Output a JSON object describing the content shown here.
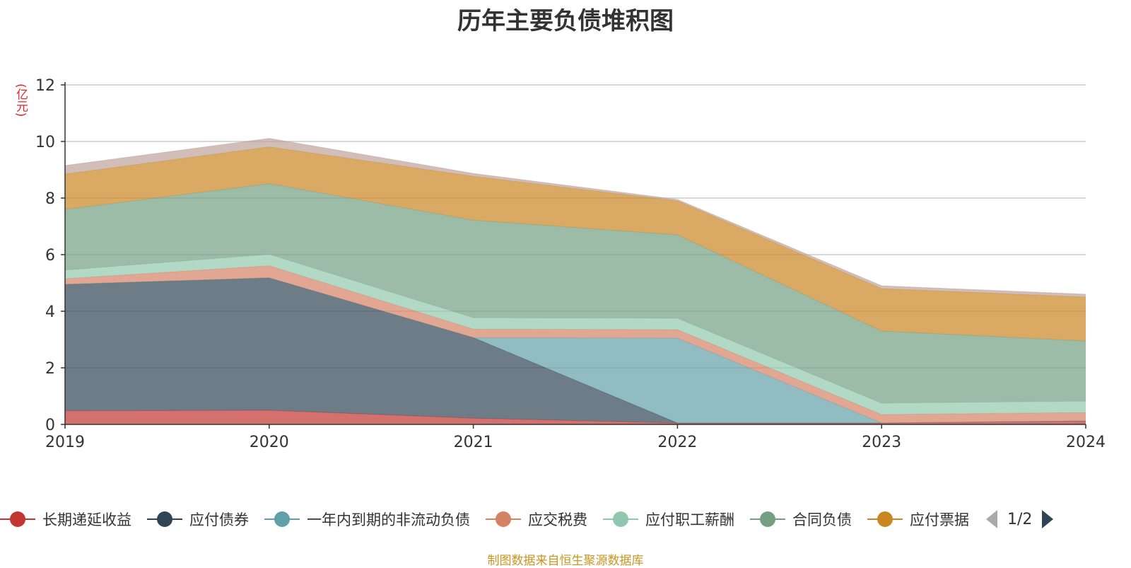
{
  "title": "历年主要负债堆积图",
  "unit": "(亿元)",
  "footer": "制图数据来自恒生聚源数据库",
  "pager": {
    "text": "1/2"
  },
  "chart_data": {
    "type": "area",
    "stacked": true,
    "title": "历年主要负债堆积图",
    "ylabel": "(亿元)",
    "x": [
      "2019",
      "2020",
      "2021",
      "2022",
      "2023",
      "2024"
    ],
    "ylim": [
      0,
      12
    ],
    "yticks": [
      0,
      2,
      4,
      6,
      8,
      10,
      12
    ],
    "grid": true,
    "legend_position": "bottom",
    "series": [
      {
        "name": "长期递延收益",
        "color": "#c23531",
        "values": [
          0.48,
          0.5,
          0.22,
          0.05,
          0.05,
          0.12
        ]
      },
      {
        "name": "应付债券",
        "color": "#2f4554",
        "values": [
          4.47,
          4.68,
          2.85,
          0.0,
          0.0,
          0.0
        ]
      },
      {
        "name": "一年内到期的非流动负债",
        "color": "#61a0a8",
        "values": [
          0.0,
          0.0,
          0.0,
          3.0,
          0.0,
          0.0
        ]
      },
      {
        "name": "应交税费",
        "color": "#d48265",
        "values": [
          0.2,
          0.43,
          0.3,
          0.3,
          0.3,
          0.3
        ]
      },
      {
        "name": "应付职工薪酬",
        "color": "#91c7ae",
        "values": [
          0.3,
          0.4,
          0.4,
          0.4,
          0.4,
          0.4
        ]
      },
      {
        "name": "合同负债",
        "color": "#749f83",
        "values": [
          2.15,
          2.5,
          3.45,
          2.95,
          2.55,
          2.13
        ]
      },
      {
        "name": "应付票据",
        "color": "#ca8622",
        "values": [
          1.25,
          1.3,
          1.55,
          1.2,
          1.5,
          1.55
        ]
      },
      {
        "name": "",
        "color": "#bda29a",
        "values": [
          0.3,
          0.3,
          0.1,
          0.05,
          0.1,
          0.1
        ]
      }
    ]
  }
}
